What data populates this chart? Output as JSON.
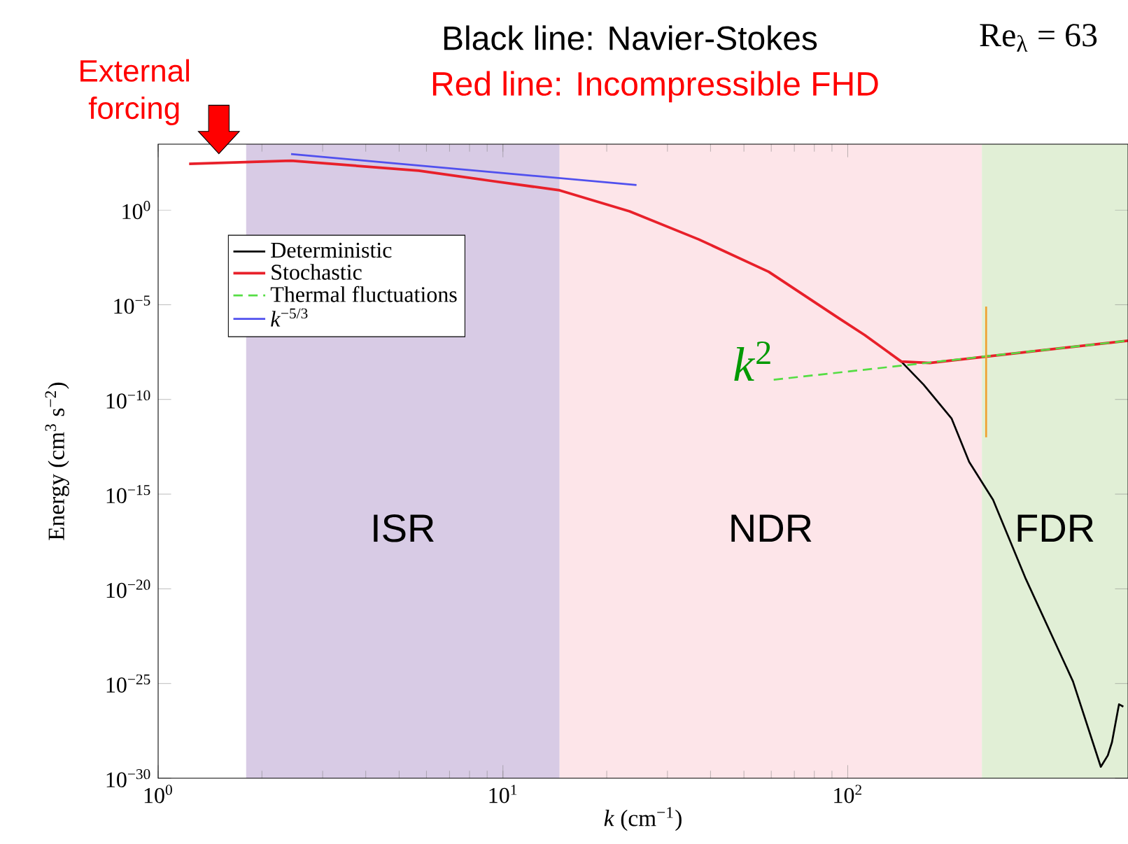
{
  "chart_data": {
    "type": "line",
    "title": "Black line: Navier-Stokes",
    "subtitle": "Red line: Incompressible FHD",
    "xlabel": "*k* (cm$^{−1}$)",
    "ylabel": "Energy (cm$^{3}$ s$^{−2}$)",
    "log": "xy",
    "xlim": [
      1,
      650
    ],
    "ylim": [
      1e-30,
      3000
    ],
    "xticks": [
      {
        "value": 1,
        "label": "10$^{0}$"
      },
      {
        "value": 10,
        "label": "10$^{1}$"
      },
      {
        "value": 100,
        "label": "10$^{2}$"
      }
    ],
    "yticks": [
      {
        "value": 1e-30,
        "label": "10$^{−30}$"
      },
      {
        "value": 1e-25,
        "label": "10$^{−25}$"
      },
      {
        "value": 1e-20,
        "label": "10$^{−20}$"
      },
      {
        "value": 1e-15,
        "label": "10$^{−15}$"
      },
      {
        "value": 1e-10,
        "label": "10$^{−10}$"
      },
      {
        "value": 1e-05,
        "label": "10$^{−5}$"
      },
      {
        "value": 1,
        "label": "10$^{0}$"
      }
    ],
    "legend": "top left",
    "series": [
      {
        "name": "Deterministic",
        "color": "#000000",
        "x": [
          143,
          166,
          200,
          225,
          264,
          327,
          450,
          542,
          568,
          584,
          612,
          630
        ],
        "values": [
          1e-08,
          6e-10,
          1e-11,
          5e-14,
          5e-16,
          4e-20,
          1.3e-25,
          4e-30,
          1.6e-29,
          8e-29,
          8e-27,
          6e-27
        ]
      },
      {
        "name": "Stochastic",
        "color": "#e8202a",
        "x": [
          1.23,
          2.43,
          5.7,
          9.1,
          14.6,
          23.3,
          37,
          59,
          94,
          112,
          143,
          173,
          650
        ],
        "values": [
          275,
          400,
          120,
          36,
          11,
          0.85,
          0.028,
          0.00055,
          2e-06,
          2.5e-07,
          1e-08,
          8.5e-09,
          1.26e-07
        ]
      },
      {
        "name": "Thermal fluctuations",
        "color": "#55dd44",
        "line_style": "dashed",
        "x": [
          61,
          650
        ],
        "values": [
          1.1e-09,
          1.26e-07
        ]
      },
      {
        "name": "*k*$^{−5/3}$",
        "color": "#5050ee",
        "x": [
          2.43,
          24.4
        ],
        "values": [
          900,
          21
        ]
      },
      {
        "color": "#f0a030",
        "x": [
          252,
          252
        ],
        "values": [
          8e-06,
          1e-12
        ]
      }
    ],
    "bands": [
      {
        "axis": "x",
        "from": 1.8,
        "to": 14.6,
        "label": "ISR",
        "color": "#d8cbe5"
      },
      {
        "axis": "x",
        "from": 14.6,
        "to": 245,
        "label": "NDR",
        "color": "#fde5e9"
      },
      {
        "axis": "x",
        "from": 245,
        "to": 650,
        "label": "FDR",
        "color": "#e1efd6"
      }
    ],
    "annotations": [
      {
        "text": "External forcing",
        "x": 1.5,
        "y": 300
      },
      "Re$_{λ}$ = 63",
      "*k*$^{2}$"
    ]
  }
}
